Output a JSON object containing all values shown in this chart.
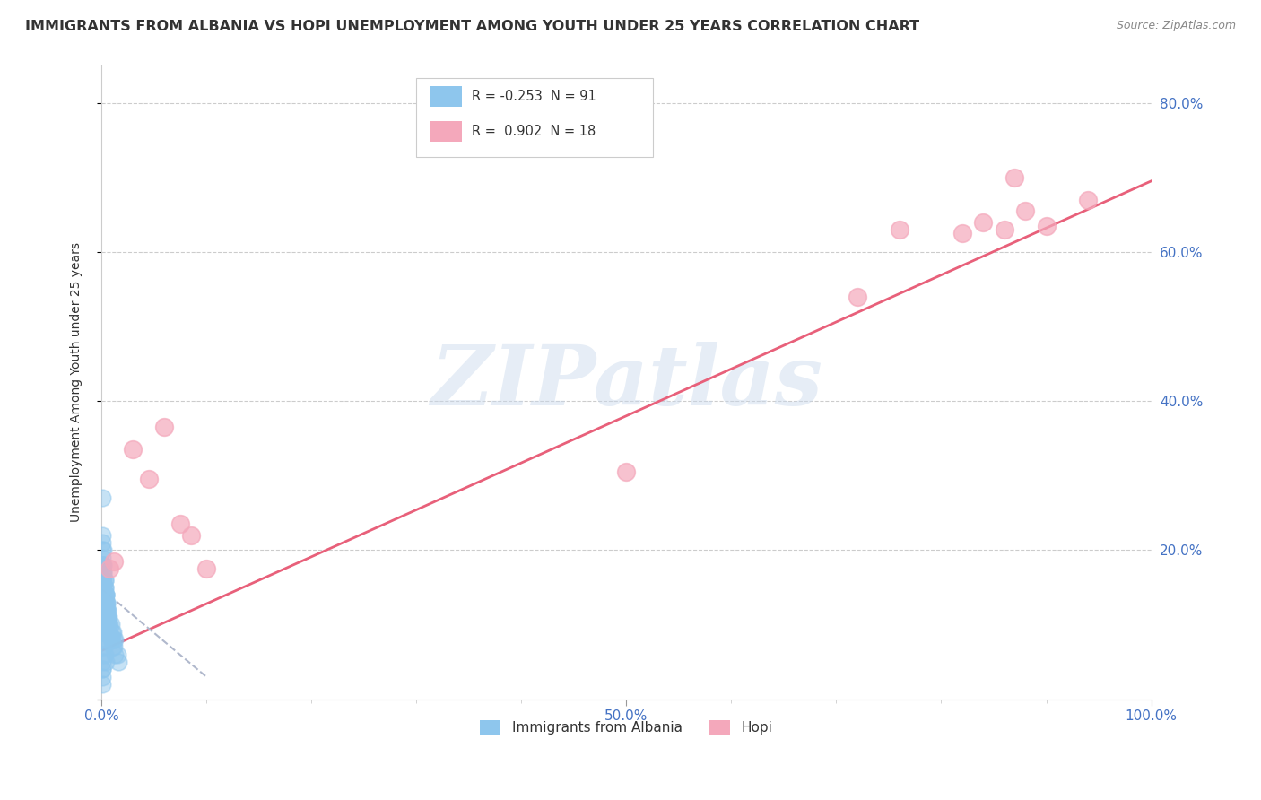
{
  "title": "IMMIGRANTS FROM ALBANIA VS HOPI UNEMPLOYMENT AMONG YOUTH UNDER 25 YEARS CORRELATION CHART",
  "source": "Source: ZipAtlas.com",
  "ylabel": "Unemployment Among Youth under 25 years",
  "xlim": [
    0.0,
    1.0
  ],
  "ylim": [
    0.0,
    0.85
  ],
  "x_tick_positions": [
    0.0,
    0.5,
    1.0
  ],
  "x_tick_labels": [
    "0.0%",
    "50.0%",
    "100.0%"
  ],
  "x_minor_ticks": [
    0.1,
    0.2,
    0.3,
    0.4,
    0.6,
    0.7,
    0.8,
    0.9
  ],
  "y_ticks": [
    0.0,
    0.2,
    0.4,
    0.6,
    0.8
  ],
  "y_tick_labels": [
    "",
    "20.0%",
    "40.0%",
    "60.0%",
    "80.0%"
  ],
  "background_color": "#ffffff",
  "grid_color": "#cccccc",
  "watermark_text": "ZIPatlas",
  "legend_R_albania": "-0.253",
  "legend_N_albania": "91",
  "legend_R_hopi": "0.902",
  "legend_N_hopi": "18",
  "albania_color": "#8ec6ed",
  "hopi_color": "#f4a8bb",
  "hopi_line_color": "#e8607a",
  "albania_line_color": "#b0b8cc",
  "albania_scatter_x": [
    0.001,
    0.001,
    0.001,
    0.002,
    0.002,
    0.003,
    0.003,
    0.004,
    0.004,
    0.005,
    0.005,
    0.006,
    0.006,
    0.007,
    0.008,
    0.009,
    0.01,
    0.011,
    0.012,
    0.013,
    0.001,
    0.001,
    0.001,
    0.001,
    0.001,
    0.001,
    0.001,
    0.001,
    0.001,
    0.001,
    0.001,
    0.001,
    0.001,
    0.001,
    0.001,
    0.001,
    0.001,
    0.001,
    0.001,
    0.001,
    0.002,
    0.002,
    0.002,
    0.002,
    0.002,
    0.002,
    0.002,
    0.002,
    0.002,
    0.003,
    0.003,
    0.003,
    0.003,
    0.003,
    0.004,
    0.004,
    0.004,
    0.005,
    0.005,
    0.005,
    0.006,
    0.006,
    0.007,
    0.007,
    0.008,
    0.009,
    0.01,
    0.011,
    0.012,
    0.013,
    0.015,
    0.016,
    0.001,
    0.001,
    0.001,
    0.002,
    0.003,
    0.001,
    0.002,
    0.002,
    0.003,
    0.001,
    0.002,
    0.001,
    0.001,
    0.001,
    0.001,
    0.002,
    0.003,
    0.004,
    0.001
  ],
  "albania_scatter_y": [
    0.27,
    0.22,
    0.2,
    0.18,
    0.17,
    0.16,
    0.15,
    0.14,
    0.14,
    0.13,
    0.12,
    0.12,
    0.11,
    0.11,
    0.1,
    0.1,
    0.09,
    0.09,
    0.08,
    0.08,
    0.21,
    0.19,
    0.18,
    0.17,
    0.16,
    0.15,
    0.14,
    0.13,
    0.13,
    0.12,
    0.11,
    0.1,
    0.09,
    0.08,
    0.07,
    0.06,
    0.05,
    0.04,
    0.03,
    0.02,
    0.2,
    0.18,
    0.17,
    0.16,
    0.15,
    0.14,
    0.13,
    0.12,
    0.11,
    0.16,
    0.15,
    0.14,
    0.13,
    0.12,
    0.14,
    0.13,
    0.12,
    0.13,
    0.12,
    0.11,
    0.11,
    0.1,
    0.1,
    0.09,
    0.09,
    0.08,
    0.08,
    0.07,
    0.07,
    0.06,
    0.06,
    0.05,
    0.18,
    0.16,
    0.15,
    0.14,
    0.13,
    0.16,
    0.14,
    0.13,
    0.12,
    0.14,
    0.12,
    0.11,
    0.1,
    0.09,
    0.08,
    0.07,
    0.06,
    0.05,
    0.04
  ],
  "hopi_scatter_x": [
    0.008,
    0.012,
    0.03,
    0.045,
    0.06,
    0.075,
    0.085,
    0.1,
    0.5,
    0.72,
    0.76,
    0.82,
    0.84,
    0.86,
    0.87,
    0.88,
    0.9,
    0.94
  ],
  "hopi_scatter_y": [
    0.175,
    0.185,
    0.335,
    0.295,
    0.365,
    0.235,
    0.22,
    0.175,
    0.305,
    0.54,
    0.63,
    0.625,
    0.64,
    0.63,
    0.7,
    0.655,
    0.635,
    0.67
  ],
  "hopi_line_x": [
    0.0,
    1.0
  ],
  "hopi_line_y": [
    0.065,
    0.695
  ],
  "albania_line_x": [
    0.0,
    0.1
  ],
  "albania_line_y": [
    0.148,
    0.03
  ]
}
